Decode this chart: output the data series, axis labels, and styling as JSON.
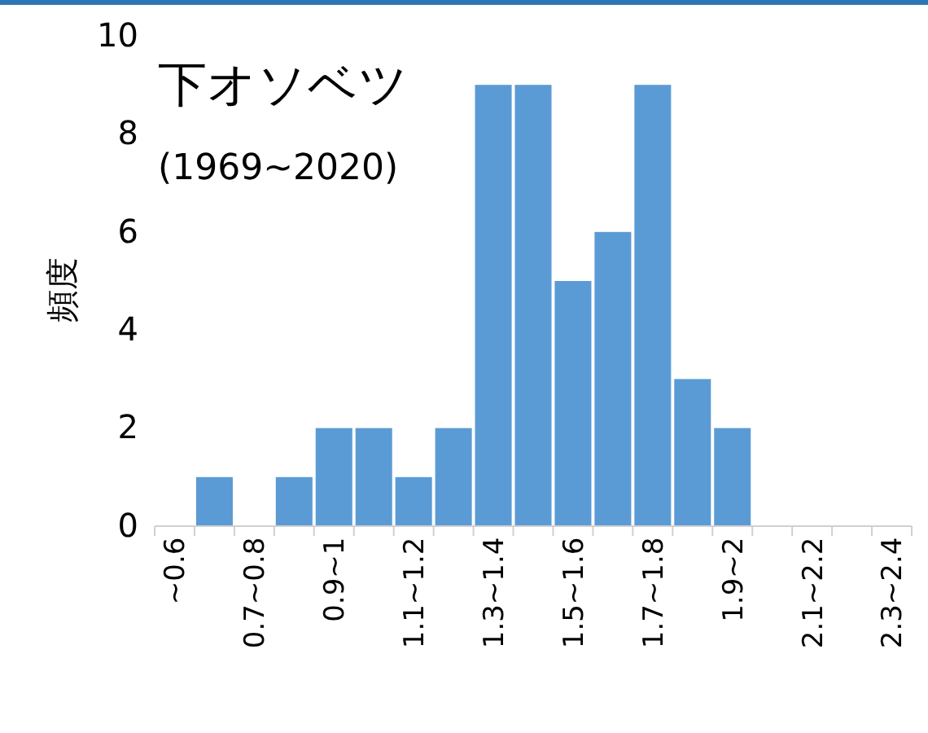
{
  "chart_data": {
    "type": "bar",
    "title": "下オソベツ",
    "subtitle": "(1969~2020)",
    "ylabel": "頻度",
    "categories": [
      "~0.6",
      null,
      "0.7~0.8",
      null,
      "0.9~1",
      null,
      "1.1~1.2",
      null,
      "1.3~1.4",
      null,
      "1.5~1.6",
      null,
      "1.7~1.8",
      null,
      "1.9~2",
      null,
      "2.1~2.2",
      null,
      "2.3~2.4"
    ],
    "values": [
      0,
      1,
      0,
      1,
      2,
      2,
      1,
      2,
      9,
      9,
      5,
      6,
      9,
      3,
      2,
      0,
      0,
      0,
      0
    ],
    "color": "#5b9bd5",
    "ylim": [
      0,
      10
    ],
    "yticks": [
      0,
      2,
      4,
      6,
      8,
      10
    ]
  }
}
